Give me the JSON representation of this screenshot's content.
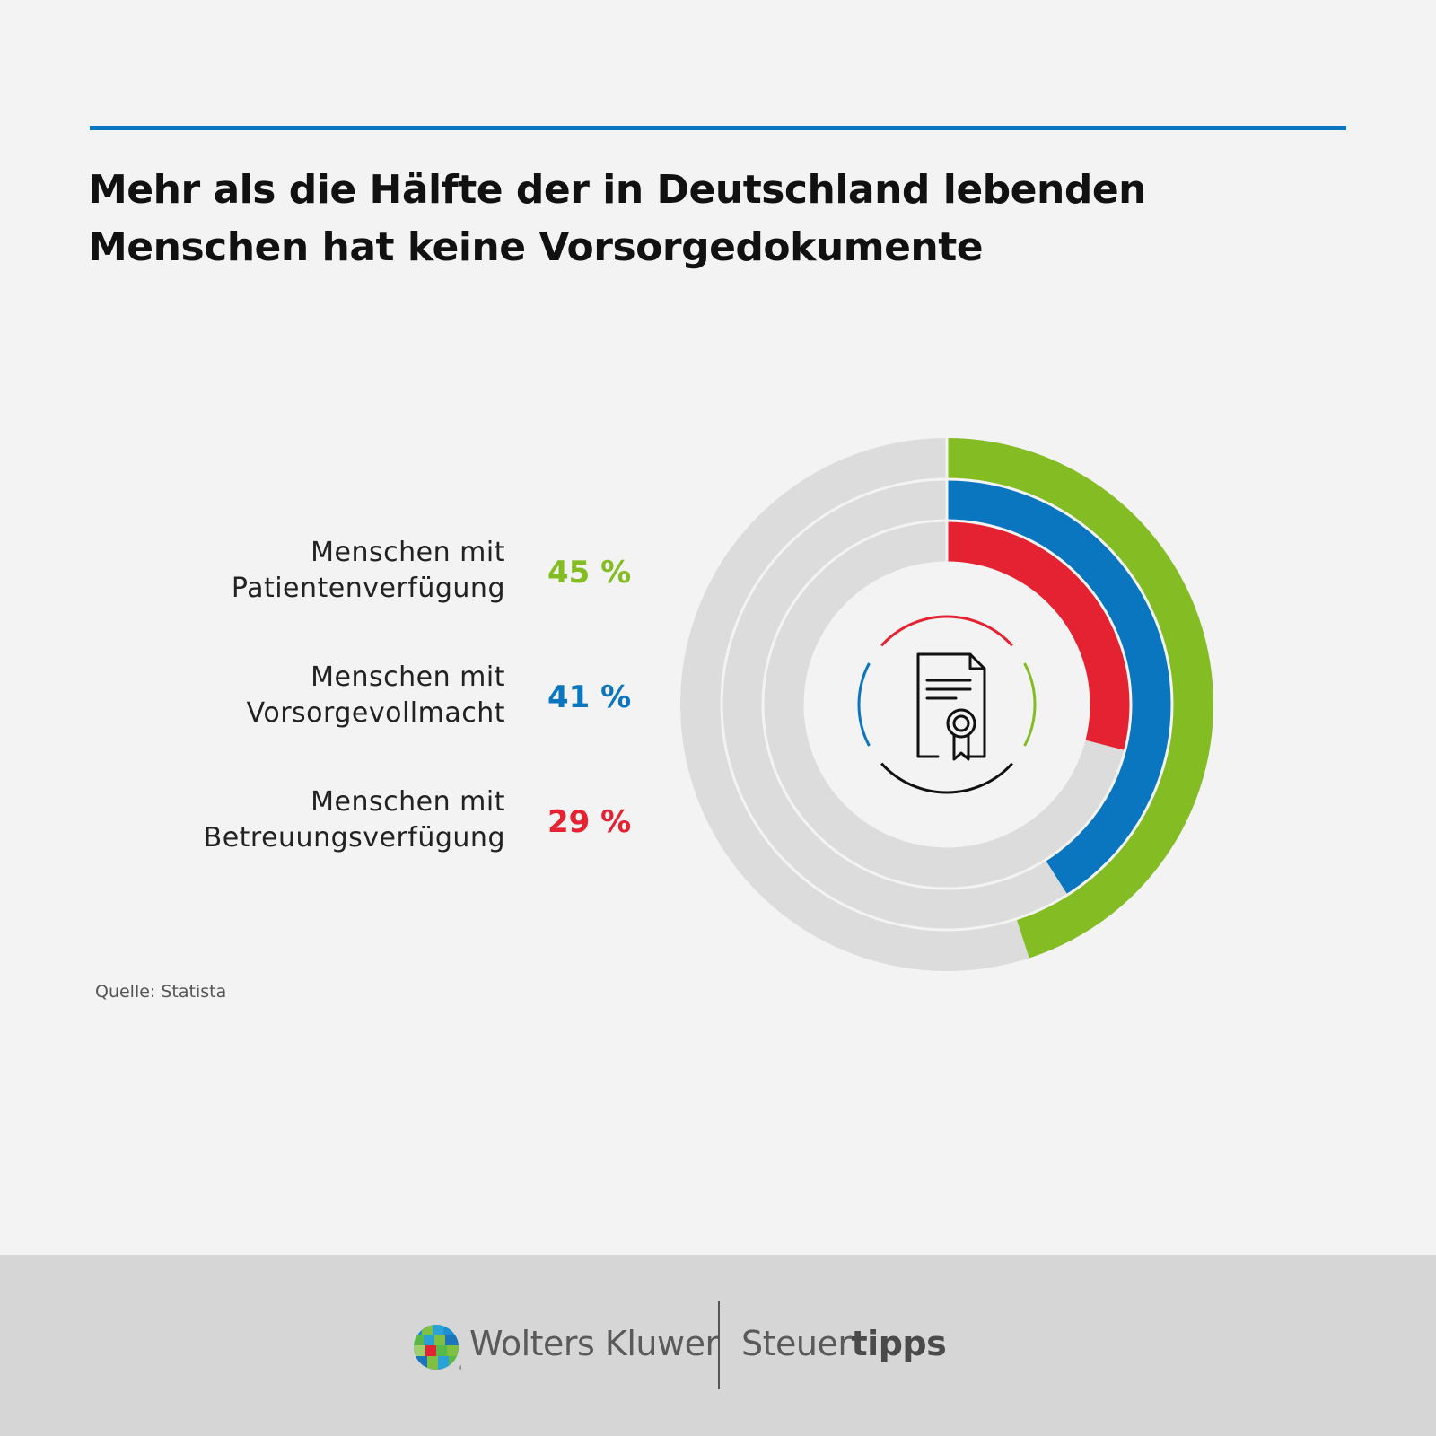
{
  "title": "Mehr als die Hälfte der in Deutschland lebenden Menschen hat keine Vorsorgedokumente",
  "source": "Quelle: Statista",
  "colors": {
    "accent_rule": "#0a76c0",
    "track": "#dcdcdc",
    "background": "#f3f3f3",
    "footer": "#d6d6d6"
  },
  "chart_data": {
    "type": "radial-bar",
    "title": "Mehr als die Hälfte der in Deutschland lebenden Menschen hat keine Vorsorgedokumente",
    "unit": "%",
    "max": 100,
    "series": [
      {
        "name": "Menschen mit\nPatientenverfügung",
        "value": 45,
        "label": "45 %",
        "color": "#84bc23",
        "ring": "outer"
      },
      {
        "name": "Menschen mit\nVorsorgevollmacht",
        "value": 41,
        "label": "41 %",
        "color": "#0a76c0",
        "ring": "middle"
      },
      {
        "name": "Menschen mit\nBetreuungsverfügung",
        "value": 29,
        "label": "29 %",
        "color": "#e52231",
        "ring": "inner"
      }
    ],
    "center_icon": "certificate-document-icon",
    "legend_position": "left",
    "grid": false
  },
  "footer": {
    "brand_icon": "wolters-kluwer-logo-icon",
    "brand": "Wolters Kluwer",
    "product_regular": "Steuer",
    "product_bold": "tipps"
  }
}
